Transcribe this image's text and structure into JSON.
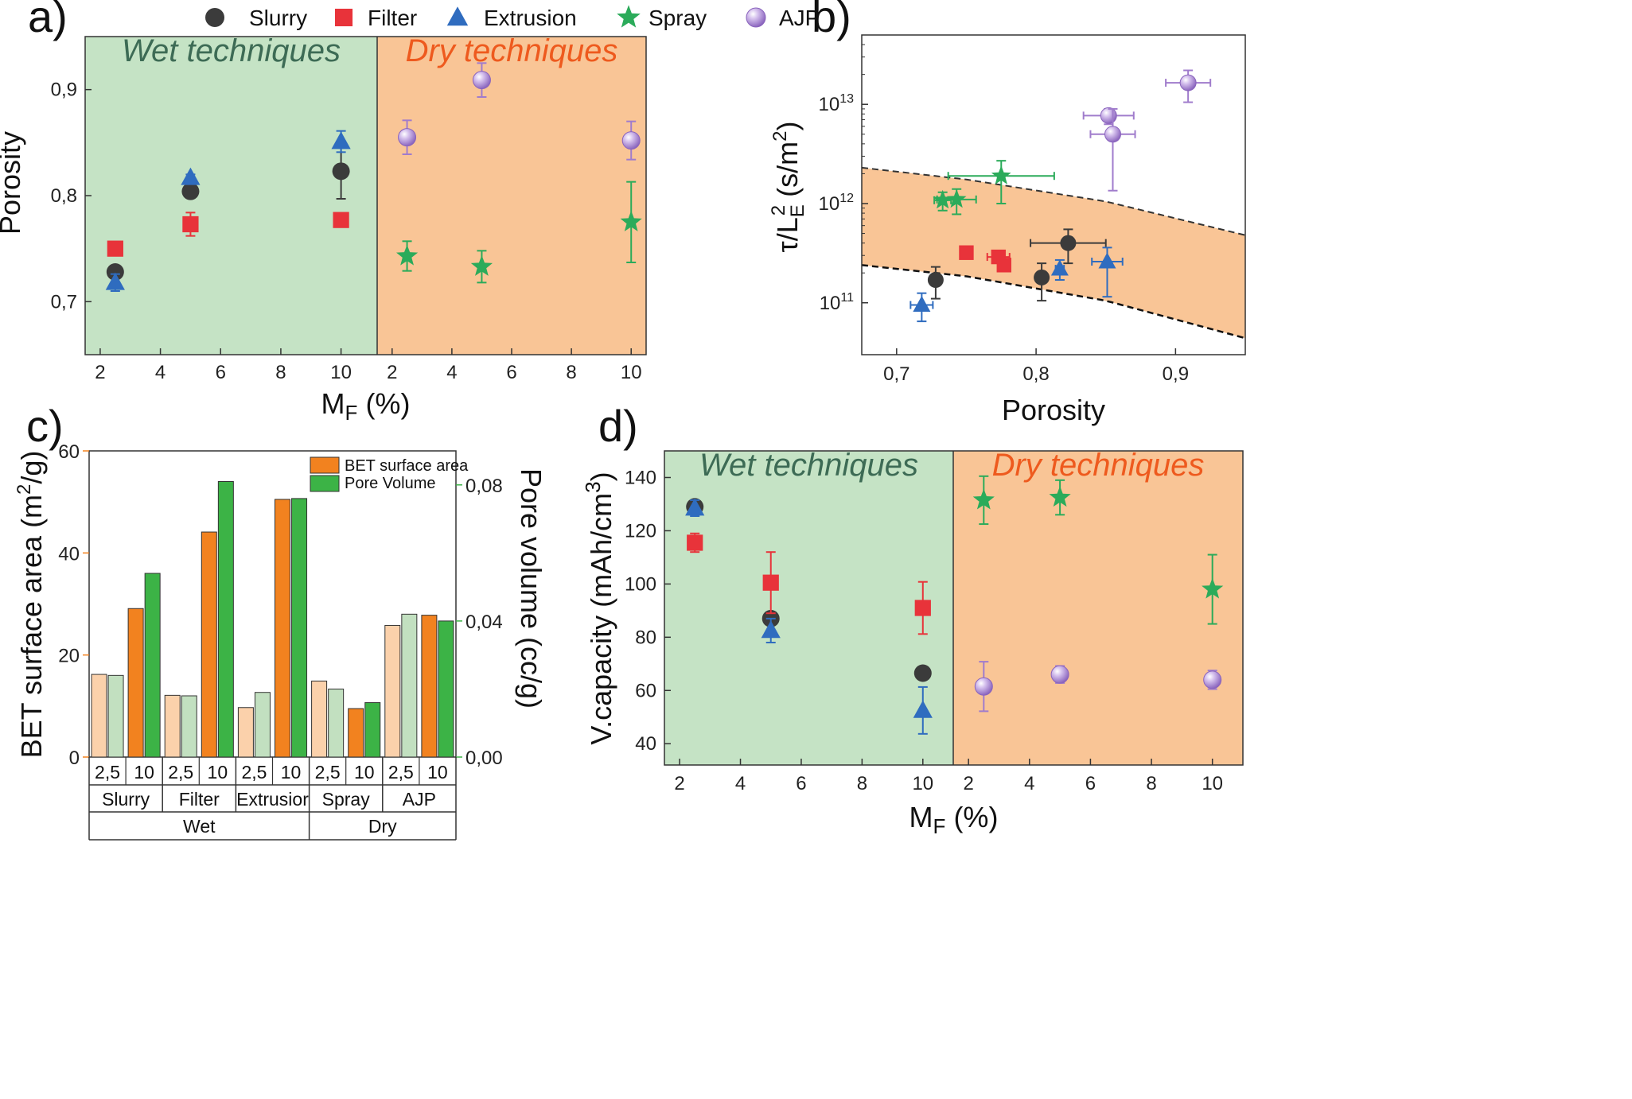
{
  "colors": {
    "Slurry": "#3b3b3b",
    "Filter": "#e8333a",
    "Extrusion": "#2f6cbf",
    "Spray": "#2bab5a",
    "AJP": "#a07ccc",
    "wet_bg": "#c5e3c5",
    "dry_bg": "#f9c596",
    "wet_text": "#3d6b55",
    "dry_text": "#ee5a1e",
    "bet_dark": "#f2821f",
    "bet_light": "#fbd1ab",
    "pore_dark": "#3cb346",
    "pore_light": "#c2e0c0",
    "band": "#f9c596"
  },
  "legend": {
    "items": [
      {
        "name": "Slurry",
        "marker": "circle"
      },
      {
        "name": "Filter",
        "marker": "square"
      },
      {
        "name": "Extrusion",
        "marker": "triangle"
      },
      {
        "name": "Spray",
        "marker": "star"
      },
      {
        "name": "AJP",
        "marker": "sphere"
      }
    ]
  },
  "chart_data": [
    {
      "panel": "a)",
      "type": "scatter",
      "ylabel": "Porosity",
      "xlabel_main": "M",
      "xlabel_sub": "F",
      "xlabel_tail": " (%)",
      "regions": [
        {
          "label": "Wet techniques",
          "xlim": [
            1.5,
            11.2
          ],
          "xticks": [
            "2",
            "4",
            "6",
            "8",
            "10"
          ]
        },
        {
          "label": "Dry techniques",
          "xlim": [
            1.5,
            10.5
          ],
          "xticks": [
            "2",
            "4",
            "6",
            "8",
            "10"
          ]
        }
      ],
      "ylim": [
        0.65,
        0.95
      ],
      "yticks": [
        "0,7",
        "0,8",
        "0,9"
      ],
      "series": [
        {
          "name": "Slurry",
          "region": 0,
          "points": [
            {
              "x": 2.5,
              "y": 0.728,
              "yerr": 0.003
            },
            {
              "x": 5,
              "y": 0.804,
              "yerr": 0.003
            },
            {
              "x": 10,
              "y": 0.823,
              "yerr": 0.026
            }
          ]
        },
        {
          "name": "Filter",
          "region": 0,
          "points": [
            {
              "x": 2.5,
              "y": 0.75,
              "yerr": 0.003
            },
            {
              "x": 5,
              "y": 0.773,
              "yerr": 0.011
            },
            {
              "x": 10,
              "y": 0.777,
              "yerr": 0.003
            }
          ]
        },
        {
          "name": "Extrusion",
          "region": 0,
          "points": [
            {
              "x": 2.5,
              "y": 0.718,
              "yerr": 0.008
            },
            {
              "x": 5,
              "y": 0.817,
              "yerr": 0.003
            },
            {
              "x": 10,
              "y": 0.851,
              "yerr": 0.01
            }
          ]
        },
        {
          "name": "Spray",
          "region": 1,
          "points": [
            {
              "x": 2.5,
              "y": 0.743,
              "yerr": 0.014
            },
            {
              "x": 5,
              "y": 0.733,
              "yerr": 0.015
            },
            {
              "x": 10,
              "y": 0.775,
              "yerr": 0.038
            }
          ]
        },
        {
          "name": "AJP",
          "region": 1,
          "points": [
            {
              "x": 2.5,
              "y": 0.855,
              "yerr": 0.016
            },
            {
              "x": 5,
              "y": 0.909,
              "yerr": 0.016
            },
            {
              "x": 10,
              "y": 0.852,
              "yerr": 0.018
            }
          ]
        }
      ]
    },
    {
      "panel": "b)",
      "type": "scatter",
      "xlabel": "Porosity",
      "ylabel_main": "τ/L",
      "ylabel_sub": "E",
      "ylabel_sup": "2",
      "ylabel_unit": " (s/m",
      "ylabel_unit_sup": "2",
      "ylabel_close": ")",
      "xlim": [
        0.675,
        0.95
      ],
      "xticks": [
        "0,7",
        "0,8",
        "0,9"
      ],
      "yscale": "log",
      "ylim": [
        30000000000.0,
        50000000000000.0
      ],
      "yticks": [
        {
          "base": "10",
          "exp": "11"
        },
        {
          "base": "10",
          "exp": "12"
        },
        {
          "base": "10",
          "exp": "13"
        }
      ],
      "band": {
        "upper": [
          [
            0.675,
            2300000000000.0
          ],
          [
            0.75,
            1750000000000.0
          ],
          [
            0.85,
            1050000000000.0
          ],
          [
            0.95,
            480000000000.0
          ]
        ],
        "lower": [
          [
            0.675,
            240000000000.0
          ],
          [
            0.75,
            185000000000.0
          ],
          [
            0.85,
            105000000000.0
          ],
          [
            0.95,
            44000000000.0
          ]
        ]
      },
      "series": [
        {
          "name": "Slurry",
          "points": [
            {
              "x": 0.728,
              "y": 170000000000.0,
              "xerr": 0.0,
              "ylo": 110000000000.0,
              "yhi": 230000000000.0
            },
            {
              "x": 0.804,
              "y": 180000000000.0,
              "xerr": 0.004,
              "ylo": 105000000000.0,
              "yhi": 250000000000.0
            },
            {
              "x": 0.823,
              "y": 400000000000.0,
              "xerr": 0.027,
              "ylo": 250000000000.0,
              "yhi": 550000000000.0
            }
          ]
        },
        {
          "name": "Filter",
          "points": [
            {
              "x": 0.75,
              "y": 320000000000.0,
              "xerr": 0.003,
              "ylo": 290000000000.0,
              "yhi": 350000000000.0
            },
            {
              "x": 0.773,
              "y": 290000000000.0,
              "xerr": 0.008,
              "ylo": 260000000000.0,
              "yhi": 330000000000.0
            },
            {
              "x": 0.777,
              "y": 240000000000.0,
              "xerr": 0.003,
              "ylo": 210000000000.0,
              "yhi": 270000000000.0
            }
          ]
        },
        {
          "name": "Extrusion",
          "points": [
            {
              "x": 0.718,
              "y": 95000000000.0,
              "xerr": 0.008,
              "ylo": 65000000000.0,
              "yhi": 125000000000.0
            },
            {
              "x": 0.817,
              "y": 220000000000.0,
              "xerr": 0.003,
              "ylo": 170000000000.0,
              "yhi": 270000000000.0
            },
            {
              "x": 0.851,
              "y": 260000000000.0,
              "xerr": 0.011,
              "ylo": 115000000000.0,
              "yhi": 360000000000.0
            }
          ]
        },
        {
          "name": "Spray",
          "points": [
            {
              "x": 0.733,
              "y": 1080000000000.0,
              "xerr": 0.006,
              "ylo": 850000000000.0,
              "yhi": 1300000000000.0
            },
            {
              "x": 0.743,
              "y": 1100000000000.0,
              "xerr": 0.014,
              "ylo": 780000000000.0,
              "yhi": 1400000000000.0
            },
            {
              "x": 0.775,
              "y": 1900000000000.0,
              "xerr": 0.038,
              "ylo": 1000000000000.0,
              "yhi": 2700000000000.0
            }
          ]
        },
        {
          "name": "AJP",
          "points": [
            {
              "x": 0.852,
              "y": 7700000000000.0,
              "xerr": 0.018,
              "ylo": 6300000000000.0,
              "yhi": 9000000000000.0
            },
            {
              "x": 0.855,
              "y": 5000000000000.0,
              "xerr": 0.016,
              "ylo": 1350000000000.0,
              "yhi": 9000000000000.0
            },
            {
              "x": 0.909,
              "y": 16500000000000.0,
              "xerr": 0.016,
              "ylo": 10500000000000.0,
              "yhi": 22000000000000.0
            }
          ]
        }
      ]
    },
    {
      "panel": "c)",
      "type": "bar",
      "ylabel_left": "BET surface area (m",
      "ylabel_left_sup": "2",
      "ylabel_left_tail": "/g)",
      "ylabel_right": "Pore volume (cc/g)",
      "ylim_left": [
        0,
        60
      ],
      "yticks_left": [
        "0",
        "20",
        "40",
        "60"
      ],
      "ylim_right": [
        0,
        0.09
      ],
      "yticks_right": [
        "0,00",
        "0,04",
        "0,08"
      ],
      "legend": [
        "BET surface area",
        "Pore Volume"
      ],
      "groups": [
        {
          "technique": "Slurry",
          "category": "Wet",
          "mf": [
            "2,5",
            "10"
          ],
          "bet": [
            16.2,
            29.1
          ],
          "pore": [
            0.024,
            0.054
          ]
        },
        {
          "technique": "Filter",
          "category": "Wet",
          "mf": [
            "2,5",
            "10"
          ],
          "bet": [
            12.1,
            44.1
          ],
          "pore": [
            0.018,
            0.081
          ]
        },
        {
          "technique": "Extrusior",
          "category": "Wet",
          "mf": [
            "2,5",
            "10"
          ],
          "bet": [
            9.7,
            50.5
          ],
          "pore": [
            0.019,
            0.076
          ]
        },
        {
          "technique": "Spray",
          "category": "Dry",
          "mf": [
            "2,5",
            "10"
          ],
          "bet": [
            14.9,
            9.5
          ],
          "pore": [
            0.02,
            0.016
          ]
        },
        {
          "technique": "AJP",
          "category": "Dry",
          "mf": [
            "2,5",
            "10"
          ],
          "bet": [
            25.8,
            27.8
          ],
          "pore": [
            0.042,
            0.04
          ]
        }
      ],
      "categories": [
        "Wet",
        "Dry"
      ]
    },
    {
      "panel": "d)",
      "type": "scatter",
      "ylabel_main": "V.capacity (mAh/cm",
      "ylabel_sup": "3",
      "ylabel_close": ")",
      "xlabel_main": "M",
      "xlabel_sub": "F",
      "xlabel_tail": " (%)",
      "regions": [
        {
          "label": "Wet techniques",
          "xlim": [
            1.5,
            11.0
          ],
          "xticks": [
            "2",
            "4",
            "6",
            "8",
            "10"
          ]
        },
        {
          "label": "Dry techniques",
          "xlim": [
            1.5,
            11.0
          ],
          "xticks": [
            "2",
            "4",
            "6",
            "8",
            "10"
          ]
        }
      ],
      "ylim": [
        32,
        150
      ],
      "yticks": [
        "40",
        "60",
        "80",
        "100",
        "120",
        "140"
      ],
      "series": [
        {
          "name": "Slurry",
          "region": 0,
          "points": [
            {
              "x": 2.5,
              "y": 129,
              "yerr": 1.5
            },
            {
              "x": 5,
              "y": 87,
              "yerr": 2
            },
            {
              "x": 10,
              "y": 66.5,
              "yerr": 1
            }
          ]
        },
        {
          "name": "Filter",
          "region": 0,
          "points": [
            {
              "x": 2.5,
              "y": 115.5,
              "yerr": 3.5
            },
            {
              "x": 5,
              "y": 100.5,
              "yerr": 11.5
            },
            {
              "x": 10,
              "y": 91,
              "yerr": 9.8
            }
          ]
        },
        {
          "name": "Extrusion",
          "region": 0,
          "points": [
            {
              "x": 2.5,
              "y": 128.5,
              "yerr": 3
            },
            {
              "x": 5,
              "y": 82.5,
              "yerr": 4.5
            },
            {
              "x": 10,
              "y": 52.5,
              "yerr": 8.8
            }
          ]
        },
        {
          "name": "Spray",
          "region": 1,
          "points": [
            {
              "x": 2.5,
              "y": 131.5,
              "yerr": 9
            },
            {
              "x": 5,
              "y": 132.5,
              "yerr": 6.5
            },
            {
              "x": 10,
              "y": 98,
              "yerr": 13
            }
          ]
        },
        {
          "name": "AJP",
          "region": 1,
          "points": [
            {
              "x": 2.5,
              "y": 61.5,
              "yerr": 9.3
            },
            {
              "x": 5,
              "y": 66,
              "yerr": 3.2
            },
            {
              "x": 10,
              "y": 64,
              "yerr": 3.5
            }
          ]
        }
      ]
    }
  ]
}
